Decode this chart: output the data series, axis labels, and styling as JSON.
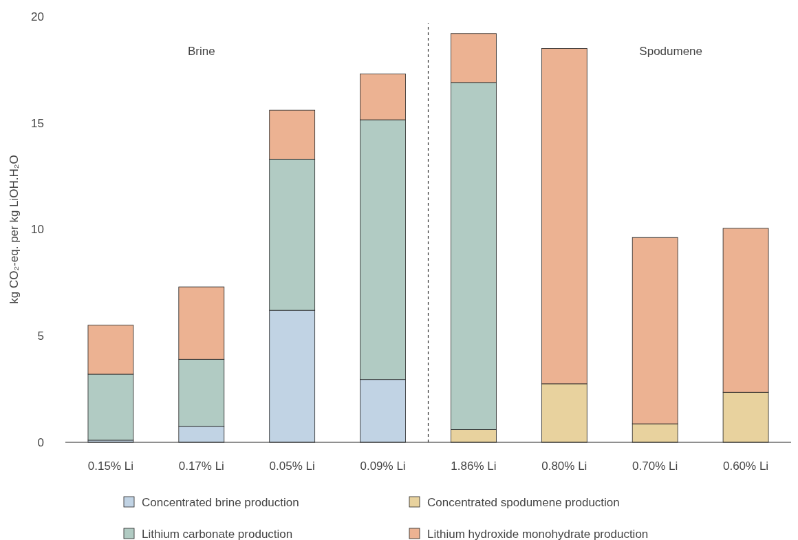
{
  "chart_data": {
    "type": "bar",
    "stacked": true,
    "ylabel": "kg CO₂-eq. per kg LiOH.H₂O",
    "categories": [
      "0.15% Li",
      "0.17% Li",
      "0.05% Li",
      "0.09% Li",
      "1.86% Li",
      "0.80% Li",
      "0.70% Li",
      "0.60% Li"
    ],
    "series": [
      {
        "name": "Concentrated brine production",
        "color": "#c1d3e4",
        "values": [
          0.1,
          0.75,
          6.2,
          2.95,
          null,
          null,
          null,
          null
        ]
      },
      {
        "name": "Concentrated spodumene production",
        "color": "#e8d29e",
        "values": [
          null,
          null,
          null,
          null,
          0.6,
          2.75,
          0.87,
          2.35
        ]
      },
      {
        "name": "Lithium carbonate production",
        "color": "#b1cbc3",
        "values": [
          3.1,
          3.15,
          7.1,
          12.2,
          16.3,
          null,
          null,
          null
        ]
      },
      {
        "name": "Lithium hydroxide monohydrate production",
        "color": "#ecb292",
        "values": [
          2.3,
          3.4,
          2.3,
          2.15,
          2.3,
          15.75,
          8.75,
          7.7
        ]
      }
    ],
    "ylim": [
      0,
      20
    ],
    "yticks": [
      0,
      5,
      10,
      15,
      20
    ],
    "grid": false,
    "legend": "bottom",
    "annotations": [
      "Brine",
      "Spodumene"
    ]
  }
}
